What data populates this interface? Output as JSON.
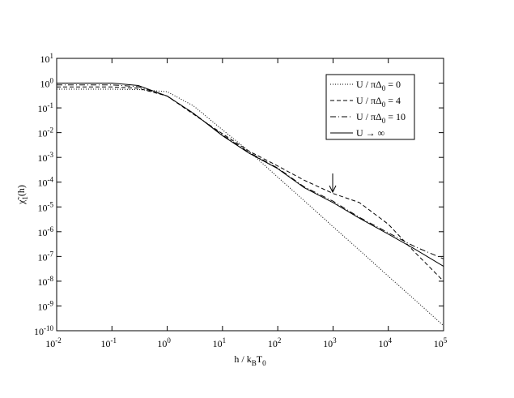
{
  "chart_data": {
    "type": "line",
    "xlabel": "h / k_{B}T_{0}",
    "ylabel": "χ̃_{1}(h)",
    "xscale": "log",
    "yscale": "log",
    "xlim": [
      0.01,
      100000
    ],
    "ylim": [
      1e-10,
      10
    ],
    "xticks": [
      {
        "value": 0.01,
        "label": "10^{-2}"
      },
      {
        "value": 0.1,
        "label": "10^{-1}"
      },
      {
        "value": 1,
        "label": "10^{0}"
      },
      {
        "value": 10,
        "label": "10^{1}"
      },
      {
        "value": 100,
        "label": "10^{2}"
      },
      {
        "value": 1000,
        "label": "10^{3}"
      },
      {
        "value": 10000,
        "label": "10^{4}"
      },
      {
        "value": 100000,
        "label": "10^{5}"
      }
    ],
    "yticks": [
      {
        "value": 1e-10,
        "label": "10^{-10}"
      },
      {
        "value": 1e-09,
        "label": "10^{-9}"
      },
      {
        "value": 1e-08,
        "label": "10^{-8}"
      },
      {
        "value": 1e-07,
        "label": "10^{-7}"
      },
      {
        "value": 1e-06,
        "label": "10^{-6}"
      },
      {
        "value": 1e-05,
        "label": "10^{-5}"
      },
      {
        "value": 0.0001,
        "label": "10^{-4}"
      },
      {
        "value": 0.001,
        "label": "10^{-3}"
      },
      {
        "value": 0.01,
        "label": "10^{-2}"
      },
      {
        "value": 0.1,
        "label": "10^{-1}"
      },
      {
        "value": 1,
        "label": "10^{0}"
      },
      {
        "value": 10,
        "label": "10^{1}"
      }
    ],
    "legend": "upper right",
    "x": [
      0.01,
      0.1,
      0.3,
      1,
      3,
      10,
      30,
      100,
      300,
      1000,
      3000,
      10000,
      30000,
      100000
    ],
    "series": [
      {
        "name": "U / πΔ_{0} = 0",
        "color": "#000000",
        "dash": "dotted",
        "values": [
          0.57,
          0.57,
          0.55,
          0.45,
          0.12,
          0.013,
          0.0018,
          0.00016,
          1.8e-05,
          1.6e-06,
          1.8e-07,
          1.6e-08,
          1.8e-09,
          1.6e-10
        ]
      },
      {
        "name": "U / πΔ_{0} = 4",
        "color": "#000000",
        "dash": "dashed",
        "values": [
          0.7,
          0.7,
          0.62,
          0.3,
          0.055,
          0.009,
          0.0018,
          0.00045,
          0.00012,
          3.5e-05,
          1.5e-05,
          2e-06,
          1.5e-07,
          1e-08
        ]
      },
      {
        "name": "U / πΔ_{0} = 10",
        "color": "#000000",
        "dash": "dashdot",
        "values": [
          0.85,
          0.85,
          0.72,
          0.3,
          0.06,
          0.008,
          0.0016,
          0.00037,
          6.5e-05,
          1.7e-05,
          3.8e-06,
          9e-07,
          2.5e-07,
          8e-08
        ]
      },
      {
        "name": "U → ∞",
        "color": "#000000",
        "dash": "solid",
        "values": [
          1.0,
          1.0,
          0.8,
          0.3,
          0.06,
          0.0075,
          0.0015,
          0.00035,
          6e-05,
          1.5e-05,
          3.5e-06,
          8e-07,
          2e-07,
          4e-08
        ]
      }
    ]
  }
}
